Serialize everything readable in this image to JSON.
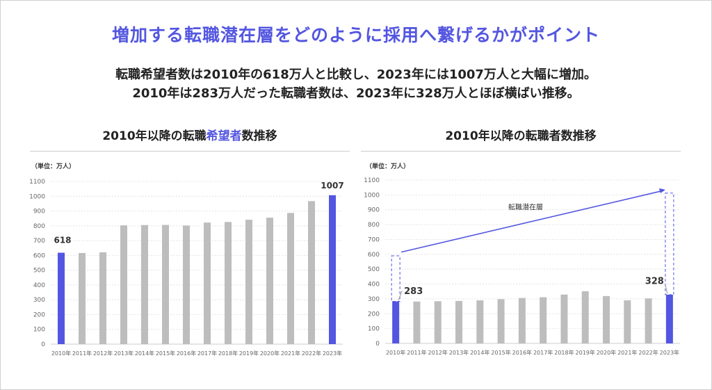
{
  "header": {
    "title": "増加する転職潜在層をどのように採用へ繋げるかがポイント",
    "line1": "転職希望者数は2010年の618万人と比較し、2023年には1007万人と大幅に増加。",
    "line2": "2010年は283万人だった転職者数は、2023年に328万人とほぼ横ばい推移。"
  },
  "colors": {
    "accent": "#5356e0",
    "bar": "#bdbdbd"
  },
  "chart_data": [
    {
      "type": "bar",
      "title_parts": [
        "2010年以降の転職",
        "希望者",
        "数推移"
      ],
      "unit": "（単位：万人）",
      "categories": [
        "2010年",
        "2011年",
        "2012年",
        "2013年",
        "2014年",
        "2015年",
        "2016年",
        "2017年",
        "2018年",
        "2019年",
        "2020年",
        "2021年",
        "2022年",
        "2023年"
      ],
      "values": [
        618,
        616,
        621,
        803,
        805,
        806,
        802,
        822,
        826,
        841,
        855,
        887,
        967,
        1007
      ],
      "highlight": [
        0,
        13
      ],
      "data_labels": {
        "0": "618",
        "13": "1007"
      },
      "ylim": [
        0,
        1100
      ],
      "yticks": [
        0,
        100,
        200,
        300,
        400,
        500,
        600,
        700,
        800,
        900,
        1000,
        1100
      ],
      "grid": true
    },
    {
      "type": "bar",
      "title": "2010年以降の転職者数推移",
      "unit": "（単位：万人）",
      "categories": [
        "2010年",
        "2011年",
        "2012年",
        "2013年",
        "2014年",
        "2015年",
        "2016年",
        "2017年",
        "2018年",
        "2019年",
        "2020年",
        "2021年",
        "2022年",
        "2023年"
      ],
      "values": [
        283,
        282,
        284,
        286,
        290,
        298,
        306,
        311,
        329,
        351,
        319,
        290,
        303,
        328
      ],
      "highlight": [
        0,
        13
      ],
      "data_labels": {
        "0": "283",
        "13": "328"
      },
      "annotation": "転職潜在層",
      "ylim": [
        0,
        1100
      ],
      "yticks": [
        0,
        100,
        200,
        300,
        400,
        500,
        600,
        700,
        800,
        900,
        1000,
        1100
      ],
      "grid": true
    }
  ]
}
